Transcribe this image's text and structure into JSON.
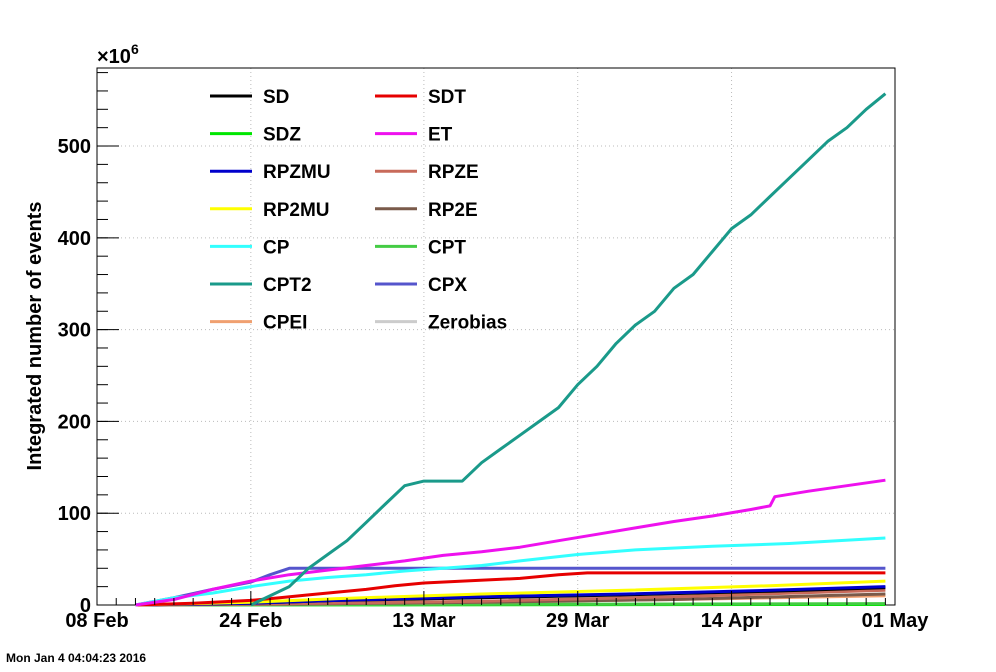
{
  "footer": {
    "timestamp": "Mon Jan  4 04:04:23 2016"
  },
  "colors": {
    "SD": "#000000",
    "SDT": "#e60000",
    "SDZ": "#00e600",
    "ET": "#ee11ee",
    "RPZMU": "#0000cc",
    "RPZE": "#c86a5a",
    "RP2MU": "#ffff00",
    "RP2E": "#7a5a4a",
    "CP": "#33ffff",
    "CPT": "#44cc44",
    "CPT2": "#1a9a8a",
    "CPX": "#5555cc",
    "CPEI": "#f0a070",
    "Zerobias": "#cccccc"
  },
  "chart_data": {
    "type": "line",
    "ylabel": "Integrated number of events",
    "yexponent": "×10",
    "yexponent_power": "6",
    "xlim": [
      0,
      82
    ],
    "ylim": [
      0,
      585
    ],
    "x_ticks": [
      {
        "label": "08 Feb",
        "x": 0
      },
      {
        "label": "24 Feb",
        "x": 16
      },
      {
        "label": "13 Mar",
        "x": 34
      },
      {
        "label": "29 Mar",
        "x": 50
      },
      {
        "label": "14 Apr",
        "x": 66
      },
      {
        "label": "01 May",
        "x": 83
      }
    ],
    "y_ticks": [
      {
        "label": "0",
        "value": 0
      },
      {
        "label": "100",
        "value": 100
      },
      {
        "label": "200",
        "value": 200
      },
      {
        "label": "300",
        "value": 300
      },
      {
        "label": "400",
        "value": 400
      },
      {
        "label": "500",
        "value": 500
      }
    ],
    "grid": true,
    "legend": "top-left",
    "legend_columns": [
      [
        "SD",
        "SDZ",
        "RPZMU",
        "RP2MU",
        "CP",
        "CPT2",
        "CPEI"
      ],
      [
        "SDT",
        "ET",
        "RPZE",
        "RP2E",
        "CPT",
        "CPX",
        "Zerobias"
      ]
    ],
    "series": [
      {
        "name": "Zerobias",
        "x": [
          4,
          82
        ],
        "y": [
          0,
          1
        ]
      },
      {
        "name": "SDZ",
        "x": [
          4,
          78,
          82
        ],
        "y": [
          0,
          0.5,
          0.5
        ]
      },
      {
        "name": "CPT",
        "x": [
          4,
          82
        ],
        "y": [
          0,
          1.5
        ]
      },
      {
        "name": "CPEI",
        "x": [
          4,
          20,
          40,
          60,
          82
        ],
        "y": [
          0,
          1,
          3,
          6,
          10
        ]
      },
      {
        "name": "RP2E",
        "x": [
          4,
          20,
          40,
          60,
          82
        ],
        "y": [
          0,
          1,
          3,
          6,
          12
        ]
      },
      {
        "name": "RPZE",
        "x": [
          4,
          20,
          40,
          60,
          82
        ],
        "y": [
          0,
          1.5,
          4,
          9,
          16
        ]
      },
      {
        "name": "SD",
        "x": [
          4,
          16,
          25,
          40,
          55,
          70,
          82
        ],
        "y": [
          0,
          2,
          5,
          8,
          11,
          15,
          19
        ]
      },
      {
        "name": "RPZMU",
        "x": [
          4,
          16,
          25,
          40,
          55,
          70,
          82
        ],
        "y": [
          0,
          2,
          5,
          9,
          12,
          16,
          20
        ]
      },
      {
        "name": "RP2MU",
        "x": [
          4,
          16,
          25,
          40,
          55,
          70,
          82
        ],
        "y": [
          0,
          3,
          7,
          12,
          16,
          21,
          26
        ]
      },
      {
        "name": "SDT",
        "x": [
          4,
          10,
          16,
          19,
          22,
          25,
          28,
          31,
          34,
          38,
          44,
          48,
          51,
          60,
          70,
          82
        ],
        "y": [
          0,
          2,
          5,
          8,
          11,
          14,
          17,
          21,
          24,
          26,
          29,
          33,
          35,
          35,
          35,
          35
        ]
      },
      {
        "name": "CPX",
        "x": [
          4,
          8,
          12,
          16,
          18,
          20,
          82
        ],
        "y": [
          0,
          8,
          17,
          25,
          33,
          40,
          40
        ]
      },
      {
        "name": "CP",
        "x": [
          4,
          8,
          12,
          16,
          20,
          24,
          28,
          32,
          36,
          40,
          44,
          50,
          56,
          64,
          72,
          82
        ],
        "y": [
          0,
          8,
          13,
          20,
          26,
          30,
          33,
          37,
          40,
          43,
          48,
          55,
          60,
          64,
          67,
          73
        ]
      },
      {
        "name": "ET",
        "x": [
          4,
          8,
          12,
          16,
          20,
          24,
          28,
          32,
          36,
          40,
          44,
          48,
          52,
          56,
          60,
          64,
          68,
          70,
          70.5,
          74,
          78,
          82
        ],
        "y": [
          0,
          6,
          17,
          26,
          33,
          38,
          43,
          48,
          54,
          58,
          63,
          70,
          77,
          84,
          91,
          97,
          104,
          108,
          118,
          124,
          130,
          136
        ]
      },
      {
        "name": "CPT2",
        "x": [
          16,
          20,
          22,
          24,
          26,
          28,
          30,
          32,
          34,
          38,
          40,
          42,
          44,
          46,
          48,
          50,
          52,
          54,
          56,
          58,
          60,
          62,
          64,
          66,
          68,
          70,
          72,
          74,
          76,
          78,
          80,
          82
        ],
        "y": [
          0,
          20,
          40,
          55,
          70,
          90,
          110,
          130,
          135,
          135,
          155,
          170,
          185,
          200,
          215,
          240,
          260,
          285,
          305,
          320,
          345,
          360,
          385,
          410,
          425,
          445,
          465,
          485,
          505,
          520,
          540,
          557
        ]
      }
    ]
  }
}
